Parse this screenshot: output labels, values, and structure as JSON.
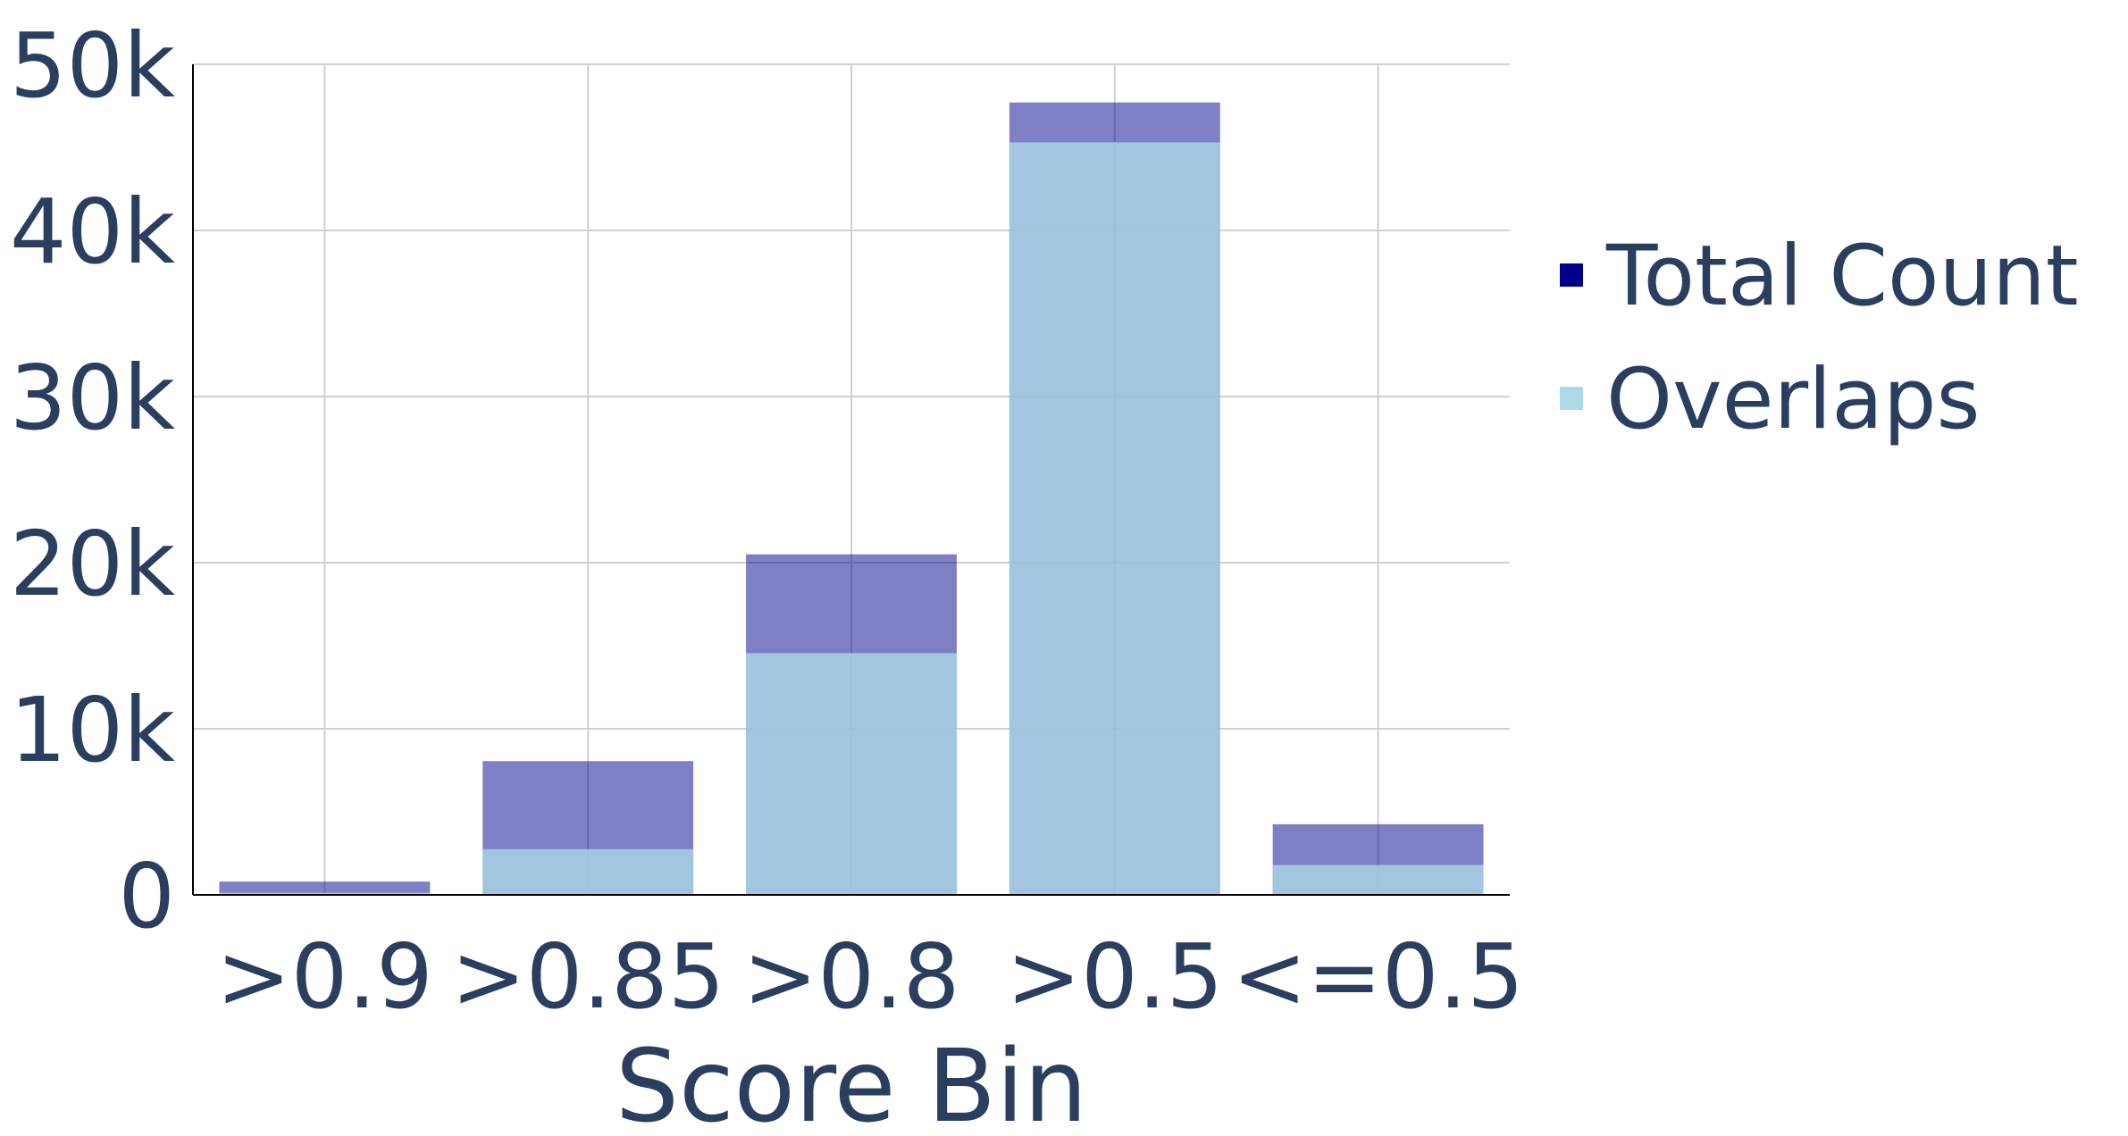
{
  "chart_data": {
    "type": "bar",
    "barmode": "overlay",
    "categories": [
      ">0.9",
      ">0.85",
      ">0.8",
      ">0.5",
      "<=0.5"
    ],
    "series": [
      {
        "name": "Total Count",
        "values": [
          800,
          8050,
          20500,
          47700,
          4250
        ],
        "color": "#00008b",
        "opacity": 0.5
      },
      {
        "name": "Overlaps",
        "values": [
          130,
          2750,
          14550,
          45300,
          1800
        ],
        "color": "#add8e6",
        "opacity": 0.8
      }
    ],
    "xlabel": "Score Bin",
    "ylabel": "",
    "ylim": [
      0,
      50000
    ],
    "yticks": [
      0,
      10000,
      20000,
      30000,
      40000,
      50000
    ],
    "ytick_labels": [
      "0",
      "10k",
      "20k",
      "30k",
      "40k",
      "50k"
    ],
    "grid": true,
    "legend_position": "right"
  }
}
